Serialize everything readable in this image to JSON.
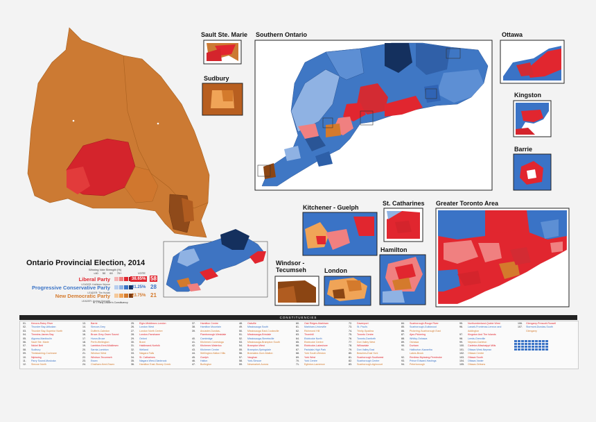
{
  "colors": {
    "liberal": "#e1262f",
    "liberal_light": "#f08080",
    "pc": "#3a73c6",
    "pc_dark": "#14305e",
    "pc_light": "#8fb2e3",
    "ndp": "#d47a2c",
    "ndp_dark": "#7a3a12",
    "ndp_light": "#f0a457"
  },
  "title": "Ontario Provincial Election, 2014",
  "legend": {
    "header": "Winning Vote Strength (%)",
    "scale": [
      "<40",
      "50",
      "60",
      "70+"
    ],
    "vote_label": "VOTE",
    "seats_label": "SEATS",
    "leader_note": "= Party Leader's Constituency",
    "parties": [
      {
        "name": "Liberal Party",
        "leader": "LEADER: Kathleen Wynne",
        "pct": "38.65%",
        "seats": "58",
        "color": "#e1262f"
      },
      {
        "name": "Progressive Conservative Party",
        "leader": "LEADER: Tim Hudak",
        "pct": "31.25%",
        "seats": "28",
        "color": "#3a73c6"
      },
      {
        "name": "New Democratic Party",
        "leader": "LEADER: Andrea Horwath",
        "pct": "23.75%",
        "seats": "21",
        "color": "#d47a2c"
      }
    ]
  },
  "regions": {
    "sault": "Sault Ste. Marie",
    "sudbury": "Sudbury",
    "southern": "Southern Ontario",
    "ottawa": "Ottawa",
    "kingston": "Kingston",
    "barrie": "Barrie",
    "kitchener": "Kitchener - Guelph",
    "stcath": "St. Catharines",
    "gta": "Greater Toronto Area",
    "hamilton": "Hamilton",
    "windsor": "Windsor -\nTecumseh",
    "london": "London"
  },
  "constituencies_heading": "CONSTITUENCIES",
  "constituencies": [
    [
      [
        "01.",
        "Kenora-Rainy River"
      ],
      [
        "02.",
        "Thunder Bay-Atikokan"
      ],
      [
        "03.",
        "Thunder Bay-Superior North"
      ],
      [
        "04.",
        "Timmins-James Bay"
      ],
      [
        "05.",
        "Algoma-Manitoulin"
      ],
      [
        "06.",
        "Sault Ste. Marie"
      ],
      [
        "07.",
        "Nickel Belt"
      ],
      [
        "08.",
        "Sudbury"
      ],
      [
        "09.",
        "Timiskaming-Cochrane"
      ],
      [
        "10.",
        "Nipissing"
      ],
      [
        "11.",
        "Parry Sound-Muskoka"
      ],
      [
        "12.",
        "Simcoe North"
      ]
    ],
    [
      [
        "13.",
        "Barrie"
      ],
      [
        "14.",
        "Simcoe-Grey"
      ],
      [
        "15.",
        "Dufferin-Caledon"
      ],
      [
        "16.",
        "Bruce-Grey-Owen Sound"
      ],
      [
        "17.",
        "Huron-Bruce"
      ],
      [
        "18.",
        "Perth-Wellington"
      ],
      [
        "19.",
        "Lambton-Kent-Middlesex"
      ],
      [
        "20.",
        "Sarnia-Lambton"
      ],
      [
        "21.",
        "Windsor West"
      ],
      [
        "22.",
        "Windsor-Tecumseh"
      ],
      [
        "23.",
        "Essex"
      ],
      [
        "24.",
        "Chatham-Kent-Essex"
      ]
    ],
    [
      [
        "25.",
        "Elgin-Middlesex-London"
      ],
      [
        "26.",
        "London West"
      ],
      [
        "27.",
        "London North Centre"
      ],
      [
        "28.",
        "London-Fanshawe"
      ],
      [
        "29.",
        "Oxford"
      ],
      [
        "30.",
        "Brant"
      ],
      [
        "31.",
        "Haldimand-Norfolk"
      ],
      [
        "32.",
        "Welland"
      ],
      [
        "33.",
        "Niagara Falls"
      ],
      [
        "34.",
        "St. Catharines"
      ],
      [
        "35.",
        "Niagara West-Glanbrook"
      ],
      [
        "36.",
        "Hamilton East-Stoney Creek"
      ]
    ],
    [
      [
        "37.",
        "Hamilton Centre"
      ],
      [
        "38.",
        "Hamilton Mountain"
      ],
      [
        "39.",
        "Ancaster-Dundas-"
      ],
      [
        "",
        "Flamborough-Westdale"
      ],
      [
        "40.",
        "Cambridge"
      ],
      [
        "41.",
        "Kitchener-Conestoga"
      ],
      [
        "42.",
        "Kitchener-Waterloo"
      ],
      [
        "43.",
        "Kitchener Centre"
      ],
      [
        "44.",
        "Wellington-Halton Hills"
      ],
      [
        "45.",
        "Guelph"
      ],
      [
        "46.",
        "Halton"
      ],
      [
        "47.",
        "Burlington"
      ]
    ],
    [
      [
        "48.",
        "Oakville"
      ],
      [
        "49.",
        "Mississauga South"
      ],
      [
        "50.",
        "Mississauga East-Cooksville"
      ],
      [
        "51.",
        "Mississauga-Erindale"
      ],
      [
        "52.",
        "Mississauga-Streetsville"
      ],
      [
        "53.",
        "Mississauga-Brampton South"
      ],
      [
        "54.",
        "Brampton West"
      ],
      [
        "55.",
        "Brampton-Springdale"
      ],
      [
        "56.",
        "Bramalea-Gore-Malton"
      ],
      [
        "57.",
        "Vaughan"
      ],
      [
        "58.",
        "York-Simcoe"
      ],
      [
        "59.",
        "Newmarket-Aurora"
      ]
    ],
    [
      [
        "60.",
        "Oak Ridges-Markham"
      ],
      [
        "61.",
        "Markham-Unionville"
      ],
      [
        "62.",
        "Richmond Hill"
      ],
      [
        "63.",
        "Thornhill"
      ],
      [
        "64.",
        "Etobicoke North"
      ],
      [
        "65.",
        "Etobicoke Centre"
      ],
      [
        "66.",
        "Etobicoke-Lakeshore"
      ],
      [
        "67.",
        "Parkdale-High Park"
      ],
      [
        "68.",
        "York South-Weston"
      ],
      [
        "69.",
        "York West"
      ],
      [
        "70.",
        "York Centre"
      ],
      [
        "71.",
        "Eglinton-Lawrence"
      ]
    ],
    [
      [
        "72.",
        "Davenport"
      ],
      [
        "73.",
        "St. Paul's"
      ],
      [
        "74.",
        "Trinity-Spadina"
      ],
      [
        "75.",
        "Toronto Centre"
      ],
      [
        "76.",
        "Toronto-Danforth"
      ],
      [
        "77.",
        "Don Valley West"
      ],
      [
        "78.",
        "Willowdale"
      ],
      [
        "79.",
        "Don Valley East"
      ],
      [
        "80.",
        "Beaches-East York"
      ],
      [
        "81.",
        "Scarborough Southwest"
      ],
      [
        "82.",
        "Scarborough Centre"
      ],
      [
        "83.",
        "Scarborough-Agincourt"
      ]
    ],
    [
      [
        "84.",
        "Scarborough-Rouge River"
      ],
      [
        "85.",
        "Scarborough-Guildwood"
      ],
      [
        "86.",
        "Pickering-Scarborough East"
      ],
      [
        "87.",
        "Ajax-Pickering"
      ],
      [
        "88.",
        "Whitby-Oshawa"
      ],
      [
        "89.",
        "Oshawa"
      ],
      [
        "90.",
        "Durham"
      ],
      [
        "91.",
        "Haliburton-Kawartha"
      ],
      [
        "",
        "Lakes-Brock"
      ],
      [
        "92.",
        "Renfrew-Nipissing-Pembroke"
      ],
      [
        "93.",
        "Prince Edward-Hastings"
      ],
      [
        "94.",
        "Peterborough"
      ]
    ],
    [
      [
        "95.",
        "Northumberland-Quinte West"
      ],
      [
        "96.",
        "Lanark-Frontenac-Lennox and"
      ],
      [
        "",
        "Addington"
      ],
      [
        "97.",
        "Kingston And The Islands"
      ],
      [
        "98.",
        "Leeds-Grenville"
      ],
      [
        "99.",
        "Nepean-Carleton"
      ],
      [
        "100.",
        "Carleton-Mississippi Mills"
      ],
      [
        "101.",
        "Ottawa West-Nepean"
      ],
      [
        "102.",
        "Ottawa Centre"
      ],
      [
        "103.",
        "Ottawa South"
      ],
      [
        "104.",
        "Ottawa-Vanier"
      ],
      [
        "105.",
        "Ottawa-Orléans"
      ]
    ],
    [
      [
        "106.",
        "Glengarry-Prescott-Russell"
      ],
      [
        "107.",
        "Stormont-Dundas-South"
      ],
      [
        "",
        "Glengarry"
      ]
    ]
  ]
}
